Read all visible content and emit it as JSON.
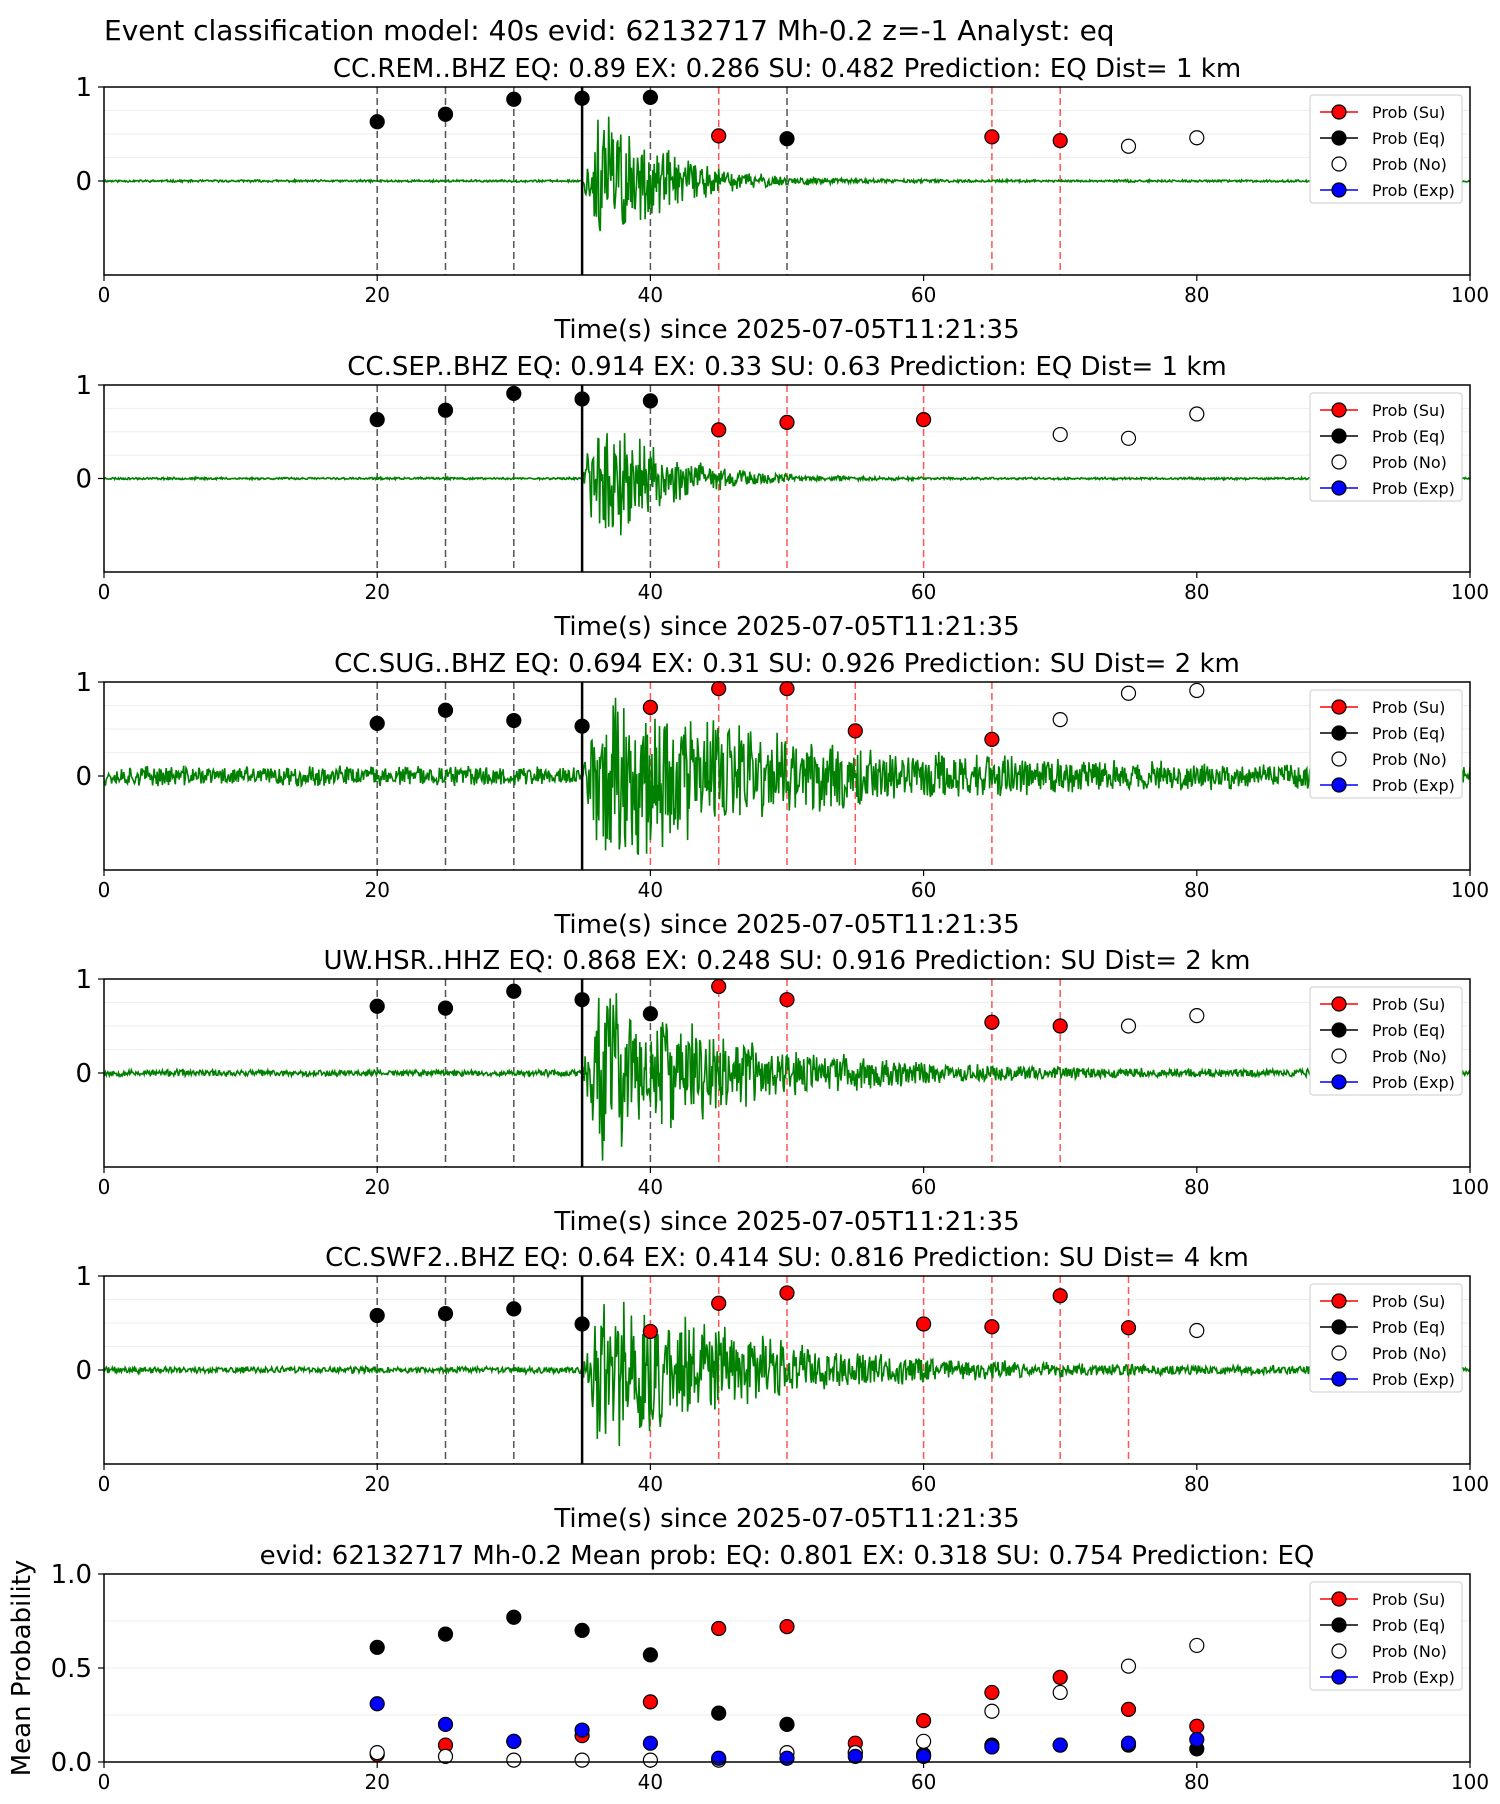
{
  "figure_title": "Event classification model: 40s evid: 62132717 Mh-0.2 z=-1 Analyst: eq",
  "legend_labels": [
    "Prob (Su)",
    "Prob (Eq)",
    "Prob (No)",
    "Prob (Exp)"
  ],
  "colors": {
    "su": "#ff0000",
    "eq": "#000000",
    "no": "#ffffff",
    "exp": "#0000ff",
    "waveform": "#008000",
    "eq_line": "#555555",
    "su_line": "#ff5555"
  },
  "chart_data": [
    {
      "type": "scatter",
      "title": "CC.REM..BHZ   EQ: 0.89  EX: 0.286  SU: 0.482   Prediction: EQ    Dist= 1 km",
      "xlabel": "Time(s) since 2025-07-05T11:21:35",
      "ylabel": "",
      "xlim": [
        0,
        100
      ],
      "ylim": [
        -1,
        1
      ],
      "xticks": [
        "0",
        "20",
        "40",
        "60",
        "80",
        "100"
      ],
      "yticks": [
        "1",
        "0"
      ],
      "legend": "right",
      "waveform": {
        "onset": 35,
        "amplitude": 1.0,
        "decay": 4.5,
        "noise": 0.01,
        "seed": 11
      },
      "pick_time": 35,
      "eq_lines": [
        20,
        25,
        30,
        40,
        50
      ],
      "su_lines": [
        45,
        65,
        70
      ],
      "points": [
        {
          "t": 20,
          "p": 0.63,
          "cls": "eq"
        },
        {
          "t": 25,
          "p": 0.71,
          "cls": "eq"
        },
        {
          "t": 30,
          "p": 0.87,
          "cls": "eq"
        },
        {
          "t": 35,
          "p": 0.88,
          "cls": "eq"
        },
        {
          "t": 40,
          "p": 0.89,
          "cls": "eq"
        },
        {
          "t": 45,
          "p": 0.48,
          "cls": "su"
        },
        {
          "t": 50,
          "p": 0.45,
          "cls": "eq"
        },
        {
          "t": 65,
          "p": 0.47,
          "cls": "su"
        },
        {
          "t": 70,
          "p": 0.43,
          "cls": "su"
        },
        {
          "t": 75,
          "p": 0.37,
          "cls": "no"
        },
        {
          "t": 80,
          "p": 0.46,
          "cls": "no"
        }
      ]
    },
    {
      "type": "scatter",
      "title": "CC.SEP..BHZ   EQ: 0.914  EX: 0.33  SU: 0.63   Prediction: EQ    Dist= 1 km",
      "xlabel": "Time(s) since 2025-07-05T11:21:35",
      "ylabel": "",
      "xlim": [
        0,
        100
      ],
      "ylim": [
        -1,
        1
      ],
      "xticks": [
        "0",
        "20",
        "40",
        "60",
        "80",
        "100"
      ],
      "yticks": [
        "1",
        "0"
      ],
      "legend": "right",
      "waveform": {
        "onset": 35,
        "amplitude": 0.9,
        "decay": 4.5,
        "noise": 0.01,
        "seed": 23
      },
      "pick_time": 35,
      "eq_lines": [
        20,
        25,
        30,
        40
      ],
      "su_lines": [
        45,
        50,
        60
      ],
      "points": [
        {
          "t": 20,
          "p": 0.63,
          "cls": "eq"
        },
        {
          "t": 25,
          "p": 0.73,
          "cls": "eq"
        },
        {
          "t": 30,
          "p": 0.91,
          "cls": "eq"
        },
        {
          "t": 35,
          "p": 0.85,
          "cls": "eq"
        },
        {
          "t": 40,
          "p": 0.83,
          "cls": "eq"
        },
        {
          "t": 45,
          "p": 0.52,
          "cls": "su"
        },
        {
          "t": 50,
          "p": 0.6,
          "cls": "su"
        },
        {
          "t": 60,
          "p": 0.63,
          "cls": "su"
        },
        {
          "t": 70,
          "p": 0.47,
          "cls": "no"
        },
        {
          "t": 75,
          "p": 0.43,
          "cls": "no"
        },
        {
          "t": 80,
          "p": 0.69,
          "cls": "no"
        }
      ]
    },
    {
      "type": "scatter",
      "title": "CC.SUG..BHZ   EQ: 0.694  EX: 0.31  SU: 0.926   Prediction: SU    Dist= 2 km",
      "xlabel": "Time(s) since 2025-07-05T11:21:35",
      "ylabel": "",
      "xlim": [
        0,
        100
      ],
      "ylim": [
        -1,
        1
      ],
      "xticks": [
        "0",
        "20",
        "40",
        "60",
        "80",
        "100"
      ],
      "yticks": [
        "1",
        "0"
      ],
      "legend": "right",
      "waveform": {
        "onset": 35,
        "amplitude": 0.85,
        "decay": 14,
        "noise": 0.09,
        "seed": 37
      },
      "pick_time": 35,
      "eq_lines": [
        20,
        25,
        30
      ],
      "su_lines": [
        40,
        45,
        50,
        55,
        65
      ],
      "points": [
        {
          "t": 20,
          "p": 0.56,
          "cls": "eq"
        },
        {
          "t": 25,
          "p": 0.7,
          "cls": "eq"
        },
        {
          "t": 30,
          "p": 0.59,
          "cls": "eq"
        },
        {
          "t": 35,
          "p": 0.53,
          "cls": "eq"
        },
        {
          "t": 40,
          "p": 0.73,
          "cls": "su"
        },
        {
          "t": 45,
          "p": 0.93,
          "cls": "su"
        },
        {
          "t": 50,
          "p": 0.93,
          "cls": "su"
        },
        {
          "t": 55,
          "p": 0.48,
          "cls": "su"
        },
        {
          "t": 65,
          "p": 0.39,
          "cls": "su"
        },
        {
          "t": 70,
          "p": 0.6,
          "cls": "no"
        },
        {
          "t": 75,
          "p": 0.88,
          "cls": "no"
        },
        {
          "t": 80,
          "p": 0.91,
          "cls": "no"
        }
      ]
    },
    {
      "type": "scatter",
      "title": "UW.HSR..HHZ   EQ: 0.868  EX: 0.248  SU: 0.916   Prediction: SU    Dist= 2 km",
      "xlabel": "Time(s) since 2025-07-05T11:21:35",
      "ylabel": "",
      "xlim": [
        0,
        100
      ],
      "ylim": [
        -1,
        1
      ],
      "xticks": [
        "0",
        "20",
        "40",
        "60",
        "80",
        "100"
      ],
      "yticks": [
        "1",
        "0"
      ],
      "legend": "right",
      "waveform": {
        "onset": 35,
        "amplitude": 0.9,
        "decay": 10,
        "noise": 0.03,
        "seed": 53
      },
      "pick_time": 35,
      "eq_lines": [
        20,
        25,
        30,
        40
      ],
      "su_lines": [
        45,
        50,
        65,
        70
      ],
      "points": [
        {
          "t": 20,
          "p": 0.71,
          "cls": "eq"
        },
        {
          "t": 25,
          "p": 0.69,
          "cls": "eq"
        },
        {
          "t": 30,
          "p": 0.87,
          "cls": "eq"
        },
        {
          "t": 35,
          "p": 0.78,
          "cls": "eq"
        },
        {
          "t": 40,
          "p": 0.63,
          "cls": "eq"
        },
        {
          "t": 45,
          "p": 0.92,
          "cls": "su"
        },
        {
          "t": 50,
          "p": 0.78,
          "cls": "su"
        },
        {
          "t": 65,
          "p": 0.54,
          "cls": "su"
        },
        {
          "t": 70,
          "p": 0.5,
          "cls": "su"
        },
        {
          "t": 75,
          "p": 0.5,
          "cls": "no"
        },
        {
          "t": 80,
          "p": 0.61,
          "cls": "no"
        }
      ]
    },
    {
      "type": "scatter",
      "title": "CC.SWF2..BHZ   EQ: 0.64  EX: 0.414  SU: 0.816   Prediction: SU    Dist= 4 km",
      "xlabel": "Time(s) since 2025-07-05T11:21:35",
      "ylabel": "",
      "xlim": [
        0,
        100
      ],
      "ylim": [
        -1,
        1
      ],
      "xticks": [
        "0",
        "20",
        "40",
        "60",
        "80",
        "100"
      ],
      "yticks": [
        "1",
        "0"
      ],
      "legend": "right",
      "waveform": {
        "onset": 35,
        "amplitude": 0.85,
        "decay": 11,
        "noise": 0.03,
        "seed": 71
      },
      "pick_time": 35,
      "eq_lines": [
        20,
        25,
        30
      ],
      "su_lines": [
        40,
        45,
        50,
        60,
        65,
        70,
        75
      ],
      "points": [
        {
          "t": 20,
          "p": 0.58,
          "cls": "eq"
        },
        {
          "t": 25,
          "p": 0.6,
          "cls": "eq"
        },
        {
          "t": 30,
          "p": 0.65,
          "cls": "eq"
        },
        {
          "t": 35,
          "p": 0.49,
          "cls": "eq"
        },
        {
          "t": 40,
          "p": 0.41,
          "cls": "su"
        },
        {
          "t": 45,
          "p": 0.71,
          "cls": "su"
        },
        {
          "t": 50,
          "p": 0.82,
          "cls": "su"
        },
        {
          "t": 60,
          "p": 0.49,
          "cls": "su"
        },
        {
          "t": 65,
          "p": 0.46,
          "cls": "su"
        },
        {
          "t": 70,
          "p": 0.79,
          "cls": "su"
        },
        {
          "t": 75,
          "p": 0.45,
          "cls": "su"
        },
        {
          "t": 80,
          "p": 0.42,
          "cls": "no"
        }
      ]
    },
    {
      "type": "scatter",
      "title": "evid: 62132717  Mh-0.2   Mean prob:   EQ: 0.801  EX: 0.318  SU: 0.754   Prediction: EQ",
      "xlabel": "",
      "ylabel": "Mean Probability",
      "xlim": [
        0,
        100
      ],
      "ylim": [
        0,
        1
      ],
      "xticks": [
        "0",
        "20",
        "40",
        "60",
        "80",
        "100"
      ],
      "yticks": [
        "1.0",
        "0.5",
        "0.0"
      ],
      "legend": "right",
      "series": [
        {
          "name": "Prob (Su)",
          "cls": "su",
          "x": [
            20,
            25,
            30,
            35,
            40,
            45,
            50,
            55,
            60,
            65,
            70,
            75,
            80
          ],
          "y": [
            0.04,
            0.09,
            0.11,
            0.14,
            0.32,
            0.71,
            0.72,
            0.1,
            0.22,
            0.37,
            0.45,
            0.28,
            0.19
          ]
        },
        {
          "name": "Prob (Eq)",
          "cls": "eq",
          "x": [
            20,
            25,
            30,
            35,
            40,
            45,
            50,
            55,
            60,
            65,
            70,
            75,
            80
          ],
          "y": [
            0.61,
            0.68,
            0.77,
            0.7,
            0.57,
            0.26,
            0.2,
            0.05,
            0.04,
            0.09,
            0.09,
            0.09,
            0.07
          ]
        },
        {
          "name": "Prob (No)",
          "cls": "no",
          "x": [
            20,
            25,
            30,
            35,
            40,
            45,
            50,
            55,
            60,
            65,
            70,
            75,
            80
          ],
          "y": [
            0.05,
            0.03,
            0.01,
            0.01,
            0.01,
            0.01,
            0.05,
            0.05,
            0.11,
            0.27,
            0.37,
            0.51,
            0.62
          ]
        },
        {
          "name": "Prob (Exp)",
          "cls": "exp",
          "x": [
            20,
            25,
            30,
            35,
            40,
            45,
            50,
            55,
            60,
            65,
            70,
            75,
            80
          ],
          "y": [
            0.31,
            0.2,
            0.11,
            0.17,
            0.1,
            0.02,
            0.02,
            0.03,
            0.03,
            0.08,
            0.09,
            0.1,
            0.12
          ]
        }
      ]
    }
  ]
}
